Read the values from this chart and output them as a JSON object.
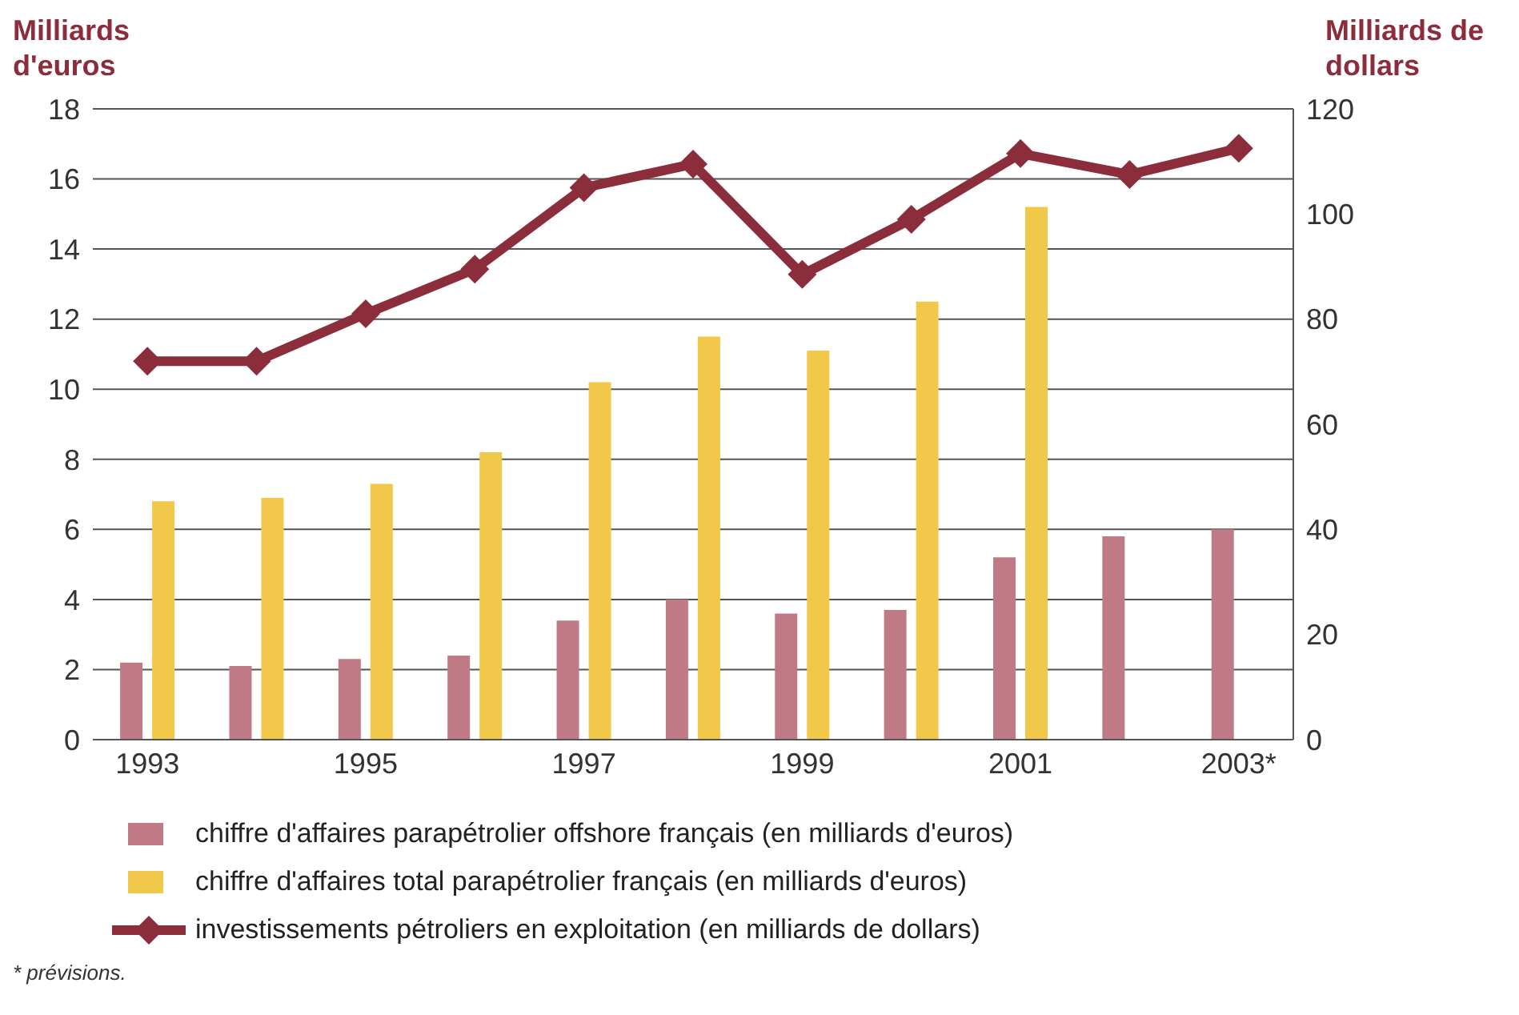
{
  "chart_data": {
    "type": "bar",
    "ylabel": "Milliards d'euros",
    "y2label": "Milliards de dollars",
    "categories": [
      "1993",
      null,
      "1995",
      null,
      "1997",
      null,
      "1999",
      null,
      "2001",
      null,
      "2003*"
    ],
    "series": [
      {
        "name": "chiffre d'affaires parapétrolier offshore français (en milliards d'euros)",
        "color": "#bf7a86",
        "values": [
          2.2,
          2.1,
          2.3,
          2.4,
          3.4,
          4.0,
          3.6,
          3.7,
          5.2,
          5.8,
          6.0
        ]
      },
      {
        "name": "chiffre d'affaires total parapétrolier français (en milliards d'euros)",
        "color": "#f2c84b",
        "values": [
          6.8,
          6.9,
          7.3,
          8.2,
          10.2,
          11.5,
          11.1,
          12.5,
          15.2,
          null,
          null
        ]
      },
      {
        "name": "investissements pétroliers en exploitation (en milliards de dollars)",
        "type": "line",
        "axis": "y2",
        "color": "#8c2d3c",
        "values": [
          72,
          72,
          81,
          89.5,
          105,
          109.5,
          88.5,
          99,
          111.5,
          107.5,
          112.5
        ]
      }
    ],
    "ylim": [
      0,
      18
    ],
    "yticks": [
      0,
      2,
      4,
      6,
      8,
      10,
      12,
      14,
      16,
      18
    ],
    "y2lim": [
      0,
      120
    ],
    "y2ticks": [
      0,
      20,
      40,
      60,
      80,
      100,
      120
    ],
    "grid": "y",
    "legend": "bottom",
    "marker": "diamond",
    "line_style": "solid",
    "annotations": [
      "* prévisions."
    ]
  }
}
